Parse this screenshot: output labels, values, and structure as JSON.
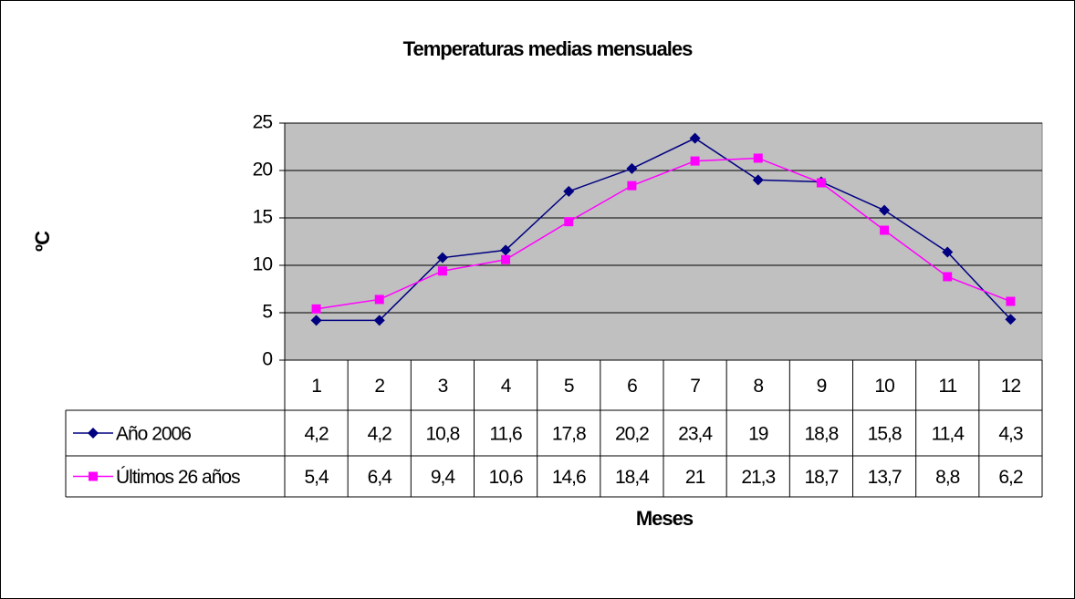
{
  "chart_data": {
    "type": "line",
    "title": "Temperaturas medias mensuales",
    "x_label": "Meses",
    "y_label": "ºC",
    "categories": [
      "1",
      "2",
      "3",
      "4",
      "5",
      "6",
      "7",
      "8",
      "9",
      "10",
      "11",
      "12"
    ],
    "series": [
      {
        "name": "Año 2006",
        "color": "#000080",
        "marker": "diamond",
        "values": [
          4.2,
          4.2,
          10.8,
          11.6,
          17.8,
          20.2,
          23.4,
          19,
          18.8,
          15.8,
          11.4,
          4.3
        ],
        "value_labels": [
          "4,2",
          "4,2",
          "10,8",
          "11,6",
          "17,8",
          "20,2",
          "23,4",
          "19",
          "18,8",
          "15,8",
          "11,4",
          "4,3"
        ]
      },
      {
        "name": "Últimos 26 años",
        "color": "#ff00ff",
        "marker": "square",
        "values": [
          5.4,
          6.4,
          9.4,
          10.6,
          14.6,
          18.4,
          21,
          21.3,
          18.7,
          13.7,
          8.8,
          6.2
        ],
        "value_labels": [
          "5,4",
          "6,4",
          "9,4",
          "10,6",
          "14,6",
          "18,4",
          "21",
          "21,3",
          "18,7",
          "13,7",
          "8,8",
          "6,2"
        ]
      }
    ],
    "ylim": [
      0,
      25
    ],
    "yticks": [
      0,
      5,
      10,
      15,
      20,
      25
    ],
    "grid": true,
    "data_table": true
  }
}
